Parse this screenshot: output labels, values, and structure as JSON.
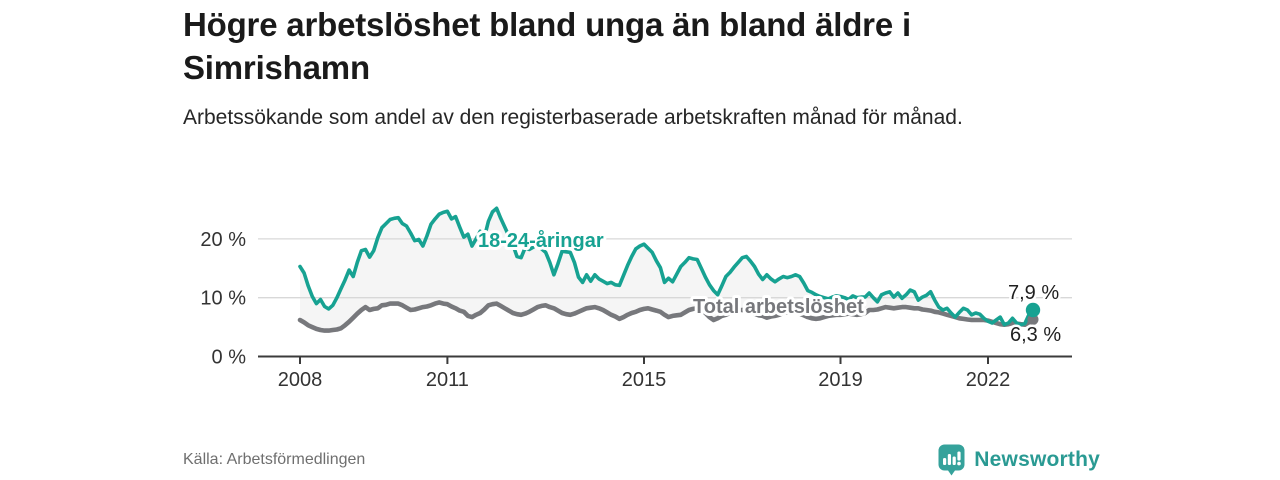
{
  "source": "Källa: Arbetsförmedlingen",
  "brand": {
    "name": "Newsworthy",
    "icon": "newsworthy-pin-barchart-icon",
    "icon_color": "#35a29b",
    "text_color": "#2a9a93"
  },
  "colors": {
    "youth_line": "#17a292",
    "total_line": "#77787c",
    "band_fill": "#f5f5f5",
    "grid": "#d8d8d8",
    "axis": "#3b3b3b",
    "end_label_text": "#1f1f1f"
  },
  "chart_data": {
    "type": "line",
    "title": "Högre arbetslöshet bland unga än bland äldre i Simrishamn",
    "subtitle": "Arbetssökande som andel av den registerbaserade arbetskraften månad för månad.",
    "unit": "%",
    "grid": "horizontal",
    "legend_position": "inline-labels",
    "xlim": [
      2007.1,
      2023.7
    ],
    "ylim": [
      0,
      26.5
    ],
    "x_axis": {
      "ticks": [
        {
          "value": 2008,
          "label": "2008"
        },
        {
          "value": 2011,
          "label": "2011"
        },
        {
          "value": 2015,
          "label": "2015"
        },
        {
          "value": 2019,
          "label": "2019"
        },
        {
          "value": 2022,
          "label": "2022"
        }
      ]
    },
    "y_axis": {
      "ticks": [
        {
          "value": 0,
          "label": "0 %"
        },
        {
          "value": 10,
          "label": "10 %"
        },
        {
          "value": 20,
          "label": "20 %"
        }
      ]
    },
    "series": [
      {
        "name": "18-24-åringar",
        "color": "#17a292",
        "start_year": 2008,
        "interval": "monthly",
        "end_value": 7.9,
        "end_label": "7,9 %",
        "monthly_values": [
          15.3,
          14.2,
          12.0,
          10.2,
          9.0,
          9.7,
          8.5,
          8.1,
          8.7,
          10.0,
          11.5,
          13.0,
          14.7,
          13.6,
          16.0,
          18.0,
          18.2,
          16.9,
          18.0,
          20.2,
          21.9,
          22.6,
          23.3,
          23.5,
          23.6,
          22.6,
          22.2,
          21.0,
          19.7,
          19.9,
          18.8,
          20.5,
          22.5,
          23.4,
          24.2,
          24.5,
          24.7,
          23.4,
          23.8,
          22.0,
          20.3,
          20.8,
          18.8,
          20.0,
          21.3,
          20.2,
          23.0,
          24.6,
          25.2,
          23.5,
          22.0,
          20.5,
          19.0,
          17.0,
          16.8,
          18.5,
          18.2,
          18.6,
          19.0,
          18.3,
          17.7,
          16.0,
          13.9,
          15.8,
          17.9,
          17.8,
          17.7,
          16.0,
          13.5,
          12.6,
          13.9,
          12.8,
          13.9,
          13.2,
          12.8,
          12.4,
          12.6,
          12.2,
          12.1,
          13.8,
          15.5,
          17.0,
          18.3,
          18.8,
          19.1,
          18.4,
          17.7,
          16.3,
          15.1,
          12.6,
          13.3,
          12.7,
          14.0,
          15.3,
          16.0,
          16.8,
          16.6,
          16.5,
          15.0,
          13.5,
          12.2,
          11.2,
          10.5,
          12.0,
          13.6,
          14.3,
          15.2,
          16.0,
          16.8,
          17.0,
          16.2,
          15.3,
          14.0,
          13.1,
          13.9,
          13.2,
          12.7,
          13.2,
          13.6,
          13.4,
          13.6,
          13.9,
          13.6,
          12.5,
          11.2,
          10.9,
          10.5,
          10.2,
          10.0,
          9.8,
          10.1,
          10.3,
          10.2,
          10.0,
          9.7,
          10.3,
          10.0,
          10.1,
          10.1,
          10.8,
          10.0,
          9.3,
          10.5,
          10.8,
          11.0,
          10.1,
          10.8,
          9.9,
          10.5,
          11.3,
          11.0,
          9.6,
          10.1,
          10.4,
          11.0,
          9.6,
          8.4,
          7.9,
          8.2,
          7.4,
          6.7,
          7.5,
          8.2,
          7.9,
          7.1,
          7.4,
          7.2,
          6.5,
          6.0,
          5.7,
          6.2,
          6.7,
          5.4,
          5.7,
          6.5,
          5.7,
          5.4,
          5.6,
          7.1,
          7.9
        ]
      },
      {
        "name": "Total arbetslöshet",
        "color": "#77787c",
        "start_year": 2008,
        "interval": "monthly",
        "end_value": 6.3,
        "end_label": "6,3 %",
        "monthly_values": [
          6.2,
          5.8,
          5.3,
          5.0,
          4.7,
          4.5,
          4.4,
          4.4,
          4.5,
          4.6,
          4.8,
          5.3,
          5.9,
          6.6,
          7.3,
          7.9,
          8.4,
          7.9,
          8.1,
          8.2,
          8.7,
          8.8,
          9.0,
          9.0,
          9.0,
          8.7,
          8.3,
          7.9,
          8.0,
          8.2,
          8.4,
          8.5,
          8.7,
          9.0,
          9.2,
          9.0,
          8.9,
          8.5,
          8.2,
          7.8,
          7.6,
          6.9,
          6.7,
          7.1,
          7.4,
          8.0,
          8.7,
          8.9,
          9.0,
          8.6,
          8.2,
          7.8,
          7.4,
          7.2,
          7.1,
          7.3,
          7.6,
          8.0,
          8.4,
          8.6,
          8.7,
          8.4,
          8.2,
          7.8,
          7.4,
          7.2,
          7.1,
          7.3,
          7.6,
          7.9,
          8.2,
          8.3,
          8.4,
          8.2,
          7.9,
          7.5,
          7.1,
          6.8,
          6.4,
          6.7,
          7.1,
          7.4,
          7.6,
          7.9,
          8.1,
          8.2,
          8.0,
          7.8,
          7.6,
          7.1,
          6.7,
          6.9,
          7.0,
          7.1,
          7.5,
          7.9,
          8.1,
          8.2,
          8.0,
          7.4,
          6.7,
          6.2,
          6.5,
          6.9,
          7.1,
          7.4,
          7.7,
          7.9,
          7.9,
          7.8,
          7.6,
          7.3,
          7.0,
          6.9,
          6.6,
          6.8,
          6.9,
          7.1,
          7.4,
          7.5,
          7.6,
          7.5,
          7.3,
          7.0,
          6.7,
          6.5,
          6.4,
          6.5,
          6.7,
          6.9,
          7.0,
          7.1,
          7.1,
          7.2,
          7.3,
          7.2,
          7.1,
          7.2,
          7.4,
          7.9,
          7.9,
          8.0,
          8.2,
          8.4,
          8.3,
          8.2,
          8.3,
          8.4,
          8.4,
          8.3,
          8.2,
          8.2,
          8.0,
          7.9,
          7.8,
          7.6,
          7.5,
          7.3,
          7.1,
          6.9,
          6.7,
          6.5,
          6.4,
          6.3,
          6.2,
          6.2,
          6.2,
          6.2,
          6.1,
          5.9,
          5.7,
          5.5,
          5.4,
          5.5,
          5.7,
          5.6,
          5.5,
          5.4,
          5.8,
          6.3
        ]
      }
    ]
  }
}
